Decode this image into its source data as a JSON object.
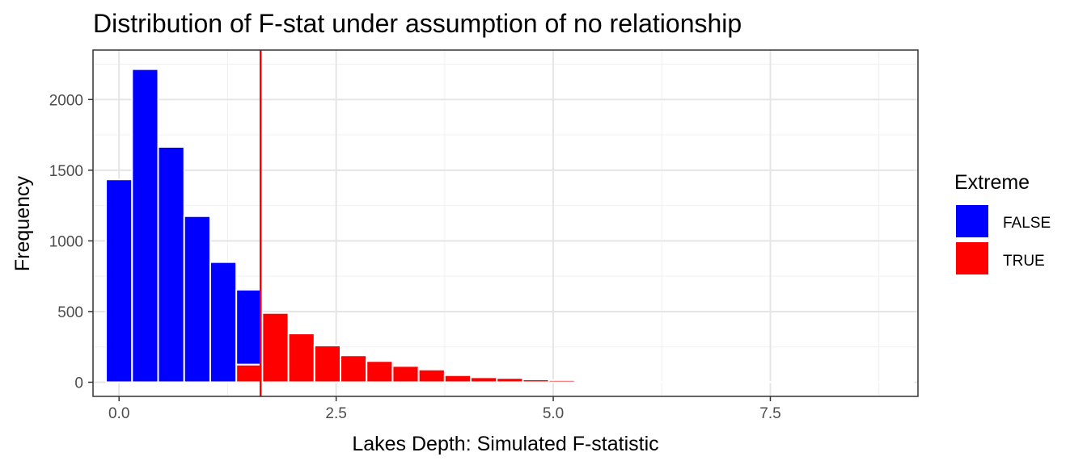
{
  "chart_data": {
    "type": "bar",
    "title": "Distribution of F-stat under assumption of no relationship",
    "xlabel": "Lakes Depth: Simulated F-statistic",
    "ylabel": "Frequency",
    "xlim": [
      -0.3,
      9.2
    ],
    "ylim": [
      -100,
      2350
    ],
    "x_ticks": [
      0,
      2.5,
      5,
      7.5
    ],
    "x_tick_labels": [
      "0.0",
      "2.5",
      "5.0",
      "7.5"
    ],
    "y_ticks": [
      0,
      500,
      1000,
      1500,
      2000
    ],
    "y_tick_labels": [
      "0",
      "500",
      "1000",
      "1500",
      "2000"
    ],
    "grid": true,
    "bin_width": 0.3,
    "bin_centers": [
      0.0,
      0.3,
      0.6,
      0.9,
      1.2,
      1.5,
      1.8,
      2.1,
      2.4,
      2.7,
      3.0,
      3.3,
      3.6,
      3.9,
      4.2,
      4.5,
      4.8,
      5.1,
      5.4,
      5.7,
      6.0,
      6.3,
      6.6,
      6.9,
      7.2,
      7.5,
      7.8,
      8.1,
      8.4,
      8.7,
      9.0
    ],
    "series": [
      {
        "name": "FALSE",
        "color": "#0000ff",
        "values": [
          1435,
          2215,
          1665,
          1175,
          850,
          530,
          0,
          0,
          0,
          0,
          0,
          0,
          0,
          0,
          0,
          0,
          0,
          0,
          0,
          0,
          0,
          0,
          0,
          0,
          0,
          0,
          0,
          0,
          0,
          0,
          0
        ]
      },
      {
        "name": "TRUE",
        "color": "#ff0000",
        "values": [
          0,
          0,
          0,
          0,
          0,
          125,
          490,
          345,
          260,
          190,
          150,
          115,
          90,
          50,
          35,
          30,
          20,
          15,
          10,
          5,
          3,
          2,
          2,
          1,
          1,
          1,
          1,
          1,
          1,
          1,
          1
        ]
      }
    ],
    "reference_line": {
      "x": 1.63,
      "color": "#ff0000"
    },
    "legend": {
      "title": "Extreme",
      "placement": "right"
    }
  }
}
